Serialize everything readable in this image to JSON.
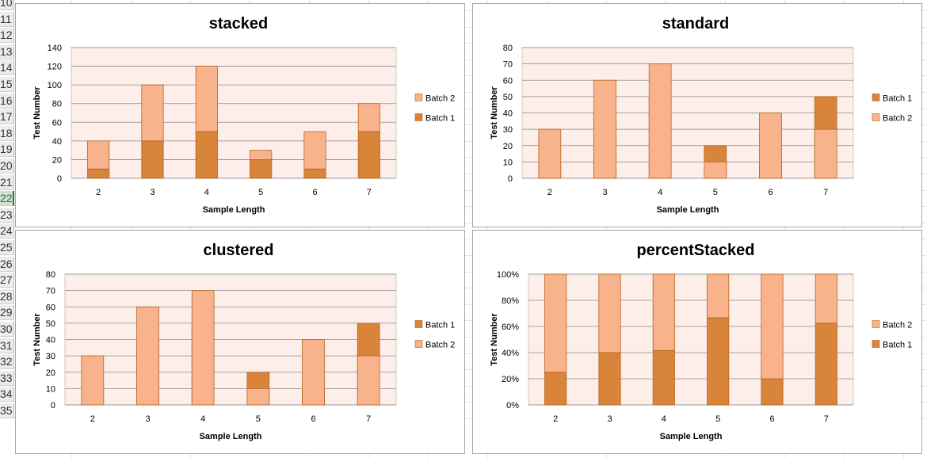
{
  "sheet": {
    "row_numbers": [
      "10",
      "11",
      "12",
      "13",
      "14",
      "15",
      "16",
      "17",
      "18",
      "19",
      "20",
      "21",
      "22",
      "23",
      "24",
      "25",
      "26",
      "27",
      "28",
      "29",
      "30",
      "31",
      "32",
      "33",
      "34",
      "35"
    ],
    "active_row": "22"
  },
  "colors": {
    "batch1": "#d9843b",
    "batch2": "#f8b38d",
    "plot_bg": "#fdeee9",
    "bar_border": "#b5651d"
  },
  "chart_data": [
    {
      "id": "stacked",
      "type": "bar",
      "grouping": "stacked",
      "title": "stacked",
      "xlabel": "Sample Length",
      "ylabel": "Test Number",
      "categories": [
        "2",
        "3",
        "4",
        "5",
        "6",
        "7"
      ],
      "series": [
        {
          "name": "Batch 1",
          "values": [
            10,
            40,
            50,
            20,
            10,
            50
          ]
        },
        {
          "name": "Batch 2",
          "values": [
            30,
            60,
            70,
            10,
            40,
            30
          ]
        }
      ],
      "ylim": [
        0,
        140
      ],
      "yticks": [
        0,
        20,
        40,
        60,
        80,
        100,
        120,
        140
      ],
      "ytick_labels": [
        "0",
        "20",
        "40",
        "60",
        "80",
        "100",
        "120",
        "140"
      ],
      "legend_order": [
        "Batch 2",
        "Batch 1"
      ],
      "legend": "right",
      "grid": true
    },
    {
      "id": "standard",
      "type": "bar",
      "grouping": "standard",
      "title": "standard",
      "xlabel": "Sample Length",
      "ylabel": "Test Number",
      "categories": [
        "2",
        "3",
        "4",
        "5",
        "6",
        "7"
      ],
      "series": [
        {
          "name": "Batch 1",
          "values": [
            10,
            40,
            50,
            20,
            10,
            50
          ]
        },
        {
          "name": "Batch 2",
          "values": [
            30,
            60,
            70,
            10,
            40,
            30
          ]
        }
      ],
      "ylim": [
        0,
        80
      ],
      "yticks": [
        0,
        10,
        20,
        30,
        40,
        50,
        60,
        70,
        80
      ],
      "ytick_labels": [
        "0",
        "10",
        "20",
        "30",
        "40",
        "50",
        "60",
        "70",
        "80"
      ],
      "legend_order": [
        "Batch 1",
        "Batch 2"
      ],
      "legend": "right",
      "grid": true
    },
    {
      "id": "clustered",
      "type": "bar",
      "grouping": "standard",
      "title": "clustered",
      "xlabel": "Sample Length",
      "ylabel": "Test Number",
      "categories": [
        "2",
        "3",
        "4",
        "5",
        "6",
        "7"
      ],
      "series": [
        {
          "name": "Batch 1",
          "values": [
            10,
            40,
            50,
            20,
            10,
            50
          ]
        },
        {
          "name": "Batch 2",
          "values": [
            30,
            60,
            70,
            10,
            40,
            30
          ]
        }
      ],
      "ylim": [
        0,
        80
      ],
      "yticks": [
        0,
        10,
        20,
        30,
        40,
        50,
        60,
        70,
        80
      ],
      "ytick_labels": [
        "0",
        "10",
        "20",
        "30",
        "40",
        "50",
        "60",
        "70",
        "80"
      ],
      "legend_order": [
        "Batch 1",
        "Batch 2"
      ],
      "legend": "right",
      "grid": true
    },
    {
      "id": "percentStacked",
      "type": "bar",
      "grouping": "percentStacked",
      "title": "percentStacked",
      "xlabel": "Sample Length",
      "ylabel": "Test Number",
      "categories": [
        "2",
        "3",
        "4",
        "5",
        "6",
        "7"
      ],
      "series": [
        {
          "name": "Batch 1",
          "values": [
            10,
            40,
            50,
            20,
            10,
            50
          ]
        },
        {
          "name": "Batch 2",
          "values": [
            30,
            60,
            70,
            10,
            40,
            30
          ]
        }
      ],
      "ylim": [
        0,
        1
      ],
      "yticks": [
        0,
        0.2,
        0.4,
        0.6,
        0.8,
        1.0
      ],
      "ytick_labels": [
        "0%",
        "20%",
        "40%",
        "60%",
        "80%",
        "100%"
      ],
      "legend_order": [
        "Batch 2",
        "Batch 1"
      ],
      "legend": "right",
      "grid": true
    }
  ]
}
